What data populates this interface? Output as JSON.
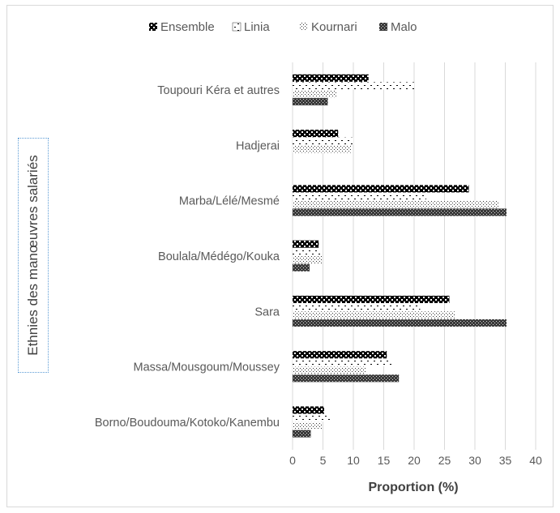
{
  "chart_data": {
    "type": "bar",
    "orientation": "horizontal",
    "title": "",
    "xlabel": "Proportion (%)",
    "ylabel": "Ethnies des manœuvres salariés",
    "xlim": [
      0,
      40
    ],
    "xticks": [
      "0",
      "5",
      "10",
      "15",
      "20",
      "25",
      "30",
      "35",
      "40"
    ],
    "grid": "vertical",
    "legend_position": "top",
    "categories": [
      "Toupouri Kéra et autres",
      "Hadjerai",
      "Marba/Lélé/Mesmé",
      "Boulala/Médégo/Kouka",
      "Sara",
      "Massa/Mousgoum/Moussey",
      "Borno/Boudouma/Kotoko/Kanembu"
    ],
    "series": [
      {
        "name": "Ensemble",
        "pattern": "ensemble",
        "values": [
          12.5,
          7.5,
          29.0,
          4.3,
          25.8,
          15.5,
          5.2
        ]
      },
      {
        "name": "Linia",
        "pattern": "linia",
        "values": [
          20.0,
          10.0,
          22.0,
          4.7,
          21.0,
          16.5,
          6.2
        ]
      },
      {
        "name": "Kournari",
        "pattern": "kournari",
        "values": [
          7.2,
          9.7,
          34.0,
          4.8,
          26.8,
          12.0,
          4.8
        ]
      },
      {
        "name": "Malo",
        "pattern": "malo",
        "values": [
          5.8,
          0,
          35.2,
          2.8,
          35.2,
          17.5,
          3.0
        ]
      }
    ]
  }
}
